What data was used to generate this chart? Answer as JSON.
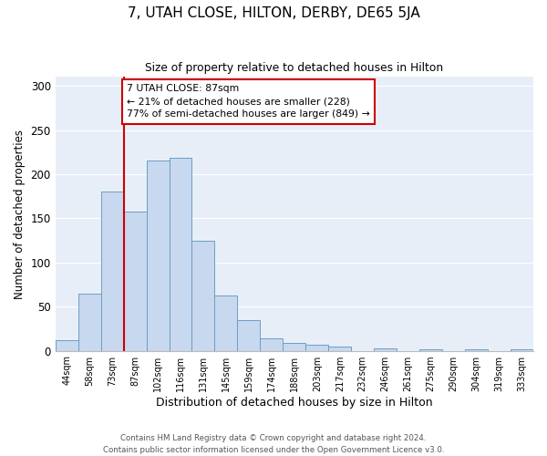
{
  "title": "7, UTAH CLOSE, HILTON, DERBY, DE65 5JA",
  "subtitle": "Size of property relative to detached houses in Hilton",
  "xlabel": "Distribution of detached houses by size in Hilton",
  "ylabel": "Number of detached properties",
  "bin_labels": [
    "44sqm",
    "58sqm",
    "73sqm",
    "87sqm",
    "102sqm",
    "116sqm",
    "131sqm",
    "145sqm",
    "159sqm",
    "174sqm",
    "188sqm",
    "203sqm",
    "217sqm",
    "232sqm",
    "246sqm",
    "261sqm",
    "275sqm",
    "290sqm",
    "304sqm",
    "319sqm",
    "333sqm"
  ],
  "bar_heights": [
    12,
    65,
    180,
    158,
    215,
    219,
    125,
    63,
    35,
    14,
    9,
    7,
    5,
    0,
    3,
    0,
    2,
    0,
    2,
    0,
    2
  ],
  "bar_color": "#c8d8ee",
  "bar_edge_color": "#6a9ec5",
  "vline_color": "#cc0000",
  "annotation_title": "7 UTAH CLOSE: 87sqm",
  "annotation_line1": "← 21% of detached houses are smaller (228)",
  "annotation_line2": "77% of semi-detached houses are larger (849) →",
  "annotation_box_edgecolor": "#cc0000",
  "ylim": [
    0,
    310
  ],
  "yticks": [
    0,
    50,
    100,
    150,
    200,
    250,
    300
  ],
  "footer1": "Contains HM Land Registry data © Crown copyright and database right 2024.",
  "footer2": "Contains public sector information licensed under the Open Government Licence v3.0.",
  "bg_color": "#e8eef8",
  "vline_bar_index": 3
}
